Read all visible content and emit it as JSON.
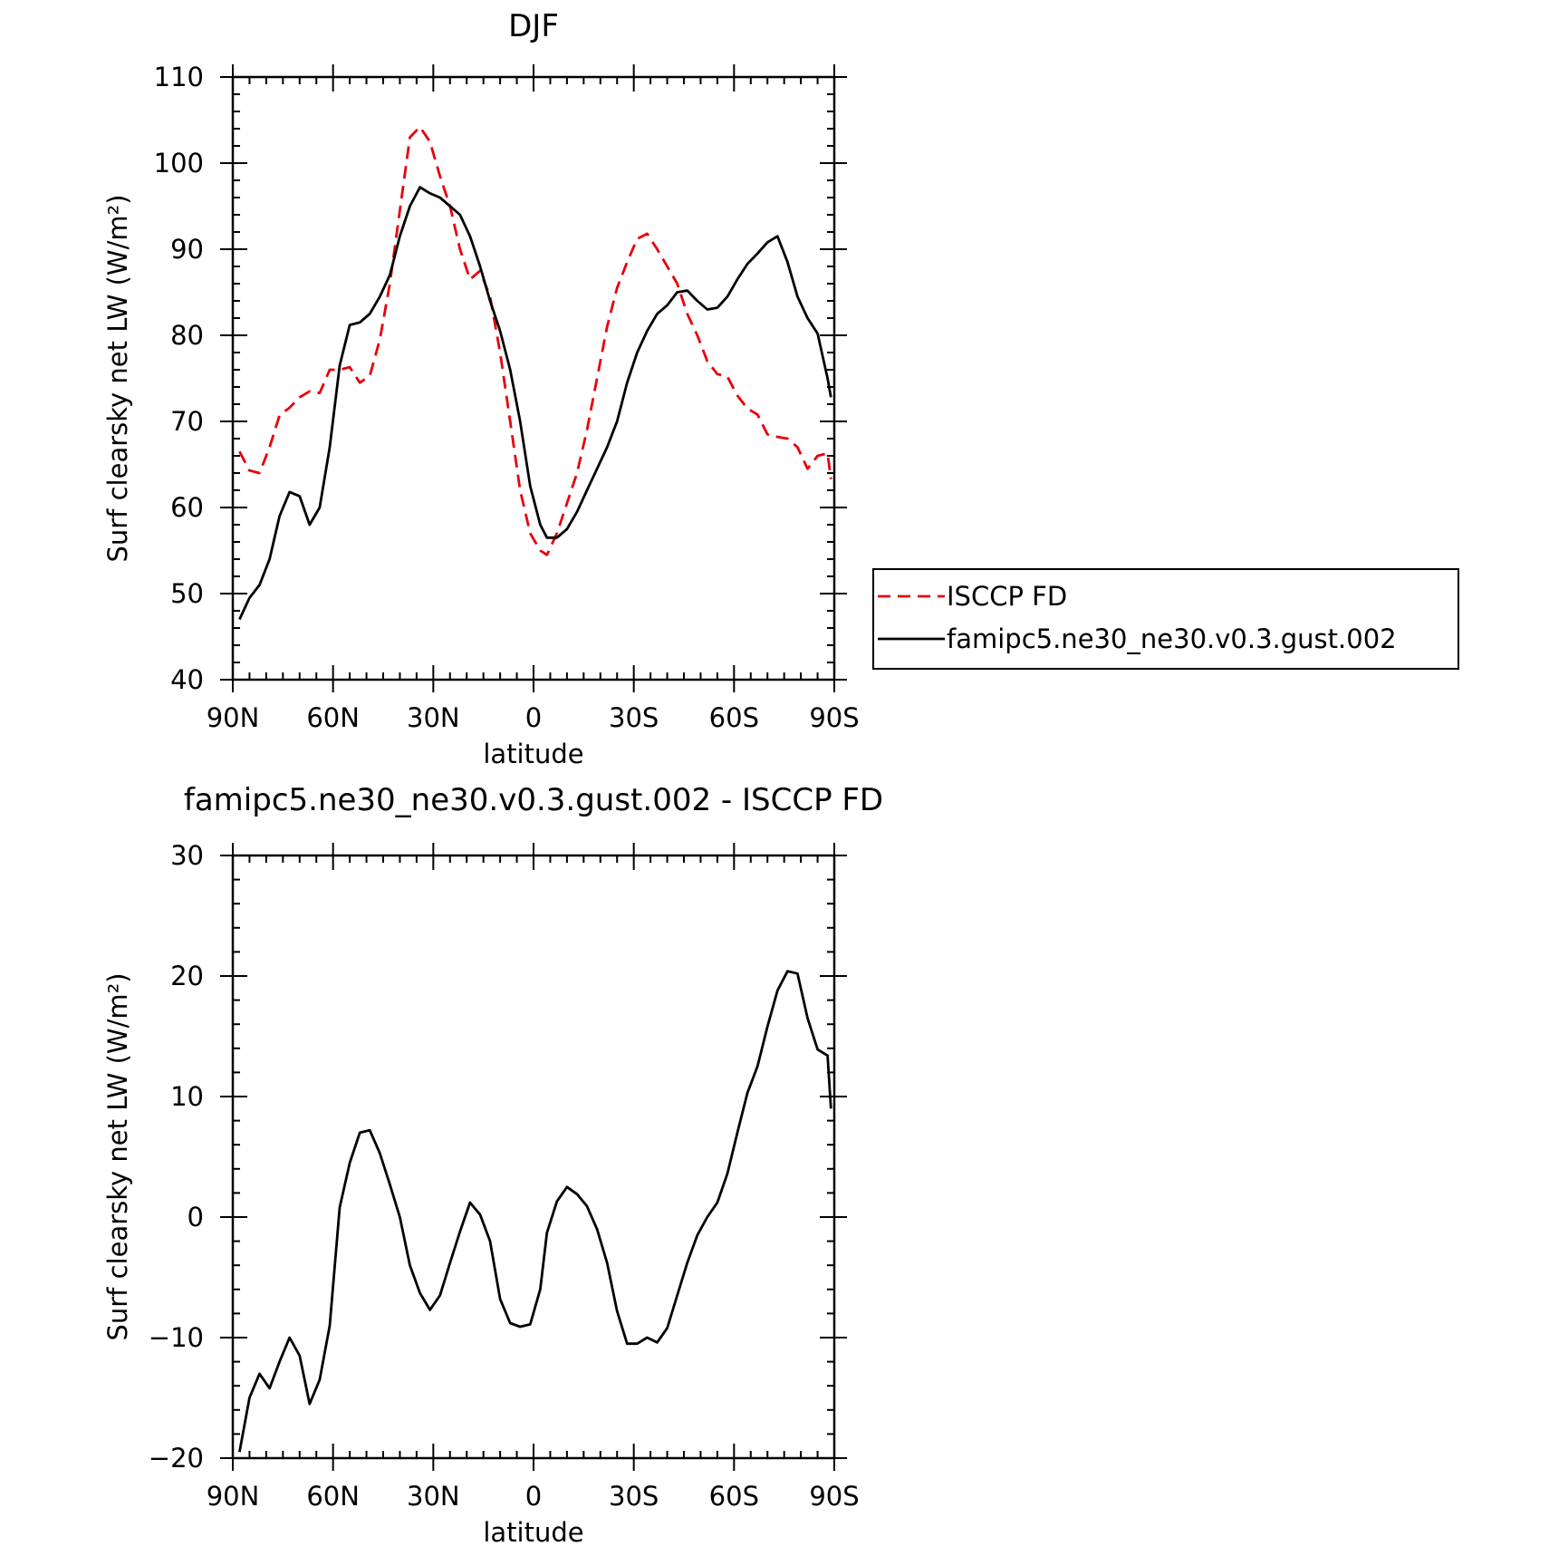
{
  "chart_data": [
    {
      "type": "line",
      "title": "DJF",
      "xlabel": "latitude",
      "ylabel": "Surf clearsky net LW (W/m²)",
      "xlim": [
        -90,
        90
      ],
      "ylim": [
        40,
        110
      ],
      "x_tick_values": [
        -90,
        -60,
        -30,
        0,
        30,
        60,
        90
      ],
      "x_tick_labels": [
        "90N",
        "60N",
        "30N",
        "0",
        "30S",
        "60S",
        "90S"
      ],
      "y_tick_values": [
        40,
        50,
        60,
        70,
        80,
        90,
        100,
        110
      ],
      "y_tick_labels": [
        "40",
        "50",
        "60",
        "70",
        "80",
        "90",
        "100",
        "110"
      ],
      "legend": "outside-right",
      "series": [
        {
          "name": "ISCCP FD",
          "color": "#e8000b",
          "style": "dashed",
          "x": [
            -88,
            -85,
            -82,
            -79,
            -76,
            -73,
            -70,
            -67,
            -64,
            -61,
            -58,
            -55,
            -52,
            -49,
            -46,
            -43,
            -40,
            -37,
            -34,
            -31,
            -28,
            -25,
            -22,
            -19,
            -16,
            -13,
            -10,
            -7,
            -4,
            -1,
            2,
            4,
            7,
            10,
            13,
            16,
            19,
            22,
            25,
            28,
            31,
            34,
            37,
            40,
            43,
            46,
            49,
            52,
            55,
            58,
            61,
            64,
            67,
            70,
            73,
            76,
            79,
            82,
            85,
            88
          ],
          "y": [
            66.5,
            64.3,
            64.0,
            67.0,
            70.7,
            71.6,
            72.8,
            73.5,
            73.3,
            76.0,
            76.0,
            76.3,
            74.5,
            75.3,
            79.5,
            86.0,
            94.5,
            103.0,
            104.2,
            102.5,
            98.5,
            95.0,
            90.0,
            86.5,
            87.5,
            84.5,
            78.0,
            70.0,
            62.0,
            57.0,
            55.0,
            54.5,
            57.0,
            60.5,
            64.0,
            69.0,
            75.0,
            81.0,
            85.5,
            88.5,
            91.2,
            91.8,
            90.0,
            88.0,
            86.0,
            82.5,
            80.0,
            77.0,
            75.5,
            75.2,
            73.0,
            71.5,
            70.8,
            68.5,
            68.2,
            68.0,
            67.0,
            64.5,
            66.0,
            66.3
          ],
          "x_end": 89,
          "y_end": 63.3
        },
        {
          "name": "famipc5.ne30_ne30.v0.3.gust.002",
          "color": "#000000",
          "style": "solid",
          "x": [
            -88,
            -85,
            -82,
            -79,
            -76,
            -73,
            -70,
            -67,
            -64,
            -61,
            -58,
            -55,
            -52,
            -49,
            -46,
            -43,
            -40,
            -37,
            -34,
            -31,
            -28,
            -25,
            -22,
            -19,
            -16,
            -13,
            -10,
            -7,
            -4,
            -1,
            2,
            4,
            7,
            10,
            13,
            16,
            19,
            22,
            25,
            28,
            31,
            34,
            37,
            40,
            43,
            46,
            49,
            52,
            55,
            58,
            61,
            64,
            67,
            70,
            73,
            76,
            79,
            82,
            85,
            88
          ],
          "y": [
            47.0,
            49.5,
            51.0,
            54.0,
            59.0,
            61.8,
            61.3,
            58.0,
            60.0,
            67.0,
            76.5,
            81.2,
            81.5,
            82.5,
            84.5,
            87.0,
            91.5,
            95.0,
            97.2,
            96.5,
            96.0,
            95.0,
            94.0,
            91.5,
            88.0,
            84.0,
            80.5,
            76.0,
            70.0,
            62.5,
            58.0,
            56.5,
            56.5,
            57.5,
            59.5,
            62.0,
            64.5,
            67.0,
            70.0,
            74.5,
            78.0,
            80.5,
            82.5,
            83.5,
            85.0,
            85.2,
            84.0,
            83.0,
            83.2,
            84.5,
            86.5,
            88.3,
            89.5,
            90.8,
            91.5,
            88.5,
            84.5,
            82.0,
            80.2,
            75.0
          ],
          "x_end": 89,
          "y_end": 72.8
        }
      ]
    },
    {
      "type": "line",
      "title": "famipc5.ne30_ne30.v0.3.gust.002 - ISCCP FD",
      "xlabel": "latitude",
      "ylabel": "Surf clearsky net LW (W/m²)",
      "xlim": [
        -90,
        90
      ],
      "ylim": [
        -20,
        30
      ],
      "x_tick_values": [
        -90,
        -60,
        -30,
        0,
        30,
        60,
        90
      ],
      "x_tick_labels": [
        "90N",
        "60N",
        "30N",
        "0",
        "30S",
        "60S",
        "90S"
      ],
      "y_tick_values": [
        -20,
        -10,
        0,
        10,
        20,
        30
      ],
      "y_tick_labels": [
        "−20",
        "−10",
        "0",
        "10",
        "20",
        "30"
      ],
      "series": [
        {
          "color": "#000000",
          "style": "solid",
          "x": [
            -88,
            -85,
            -82,
            -79,
            -76,
            -73,
            -70,
            -67,
            -64,
            -61,
            -58,
            -55,
            -52,
            -49,
            -46,
            -43,
            -40,
            -37,
            -34,
            -31,
            -28,
            -25,
            -22,
            -19,
            -16,
            -13,
            -10,
            -7,
            -4,
            -1,
            2,
            4,
            7,
            10,
            13,
            16,
            19,
            22,
            25,
            28,
            31,
            34,
            37,
            40,
            43,
            46,
            49,
            52,
            55,
            58,
            61,
            64,
            67,
            70,
            73,
            76,
            79,
            82,
            85,
            88
          ],
          "y": [
            -19.5,
            -15.0,
            -13.0,
            -14.2,
            -12.0,
            -10.0,
            -11.5,
            -15.5,
            -13.5,
            -9.0,
            0.8,
            4.5,
            7.0,
            7.2,
            5.3,
            2.7,
            0.0,
            -4.0,
            -6.3,
            -7.7,
            -6.5,
            -3.8,
            -1.2,
            1.2,
            0.2,
            -2.0,
            -6.8,
            -8.8,
            -9.1,
            -8.9,
            -6.0,
            -1.3,
            1.3,
            2.5,
            1.9,
            0.9,
            -1.0,
            -3.8,
            -7.8,
            -10.5,
            -10.5,
            -10.0,
            -10.4,
            -9.2,
            -6.5,
            -3.8,
            -1.5,
            0.0,
            1.2,
            3.6,
            7.0,
            10.3,
            12.5,
            15.8,
            18.8,
            20.4,
            20.2,
            16.5,
            13.9,
            13.4
          ],
          "x_end": 89,
          "y_end": 9.0
        }
      ]
    }
  ]
}
